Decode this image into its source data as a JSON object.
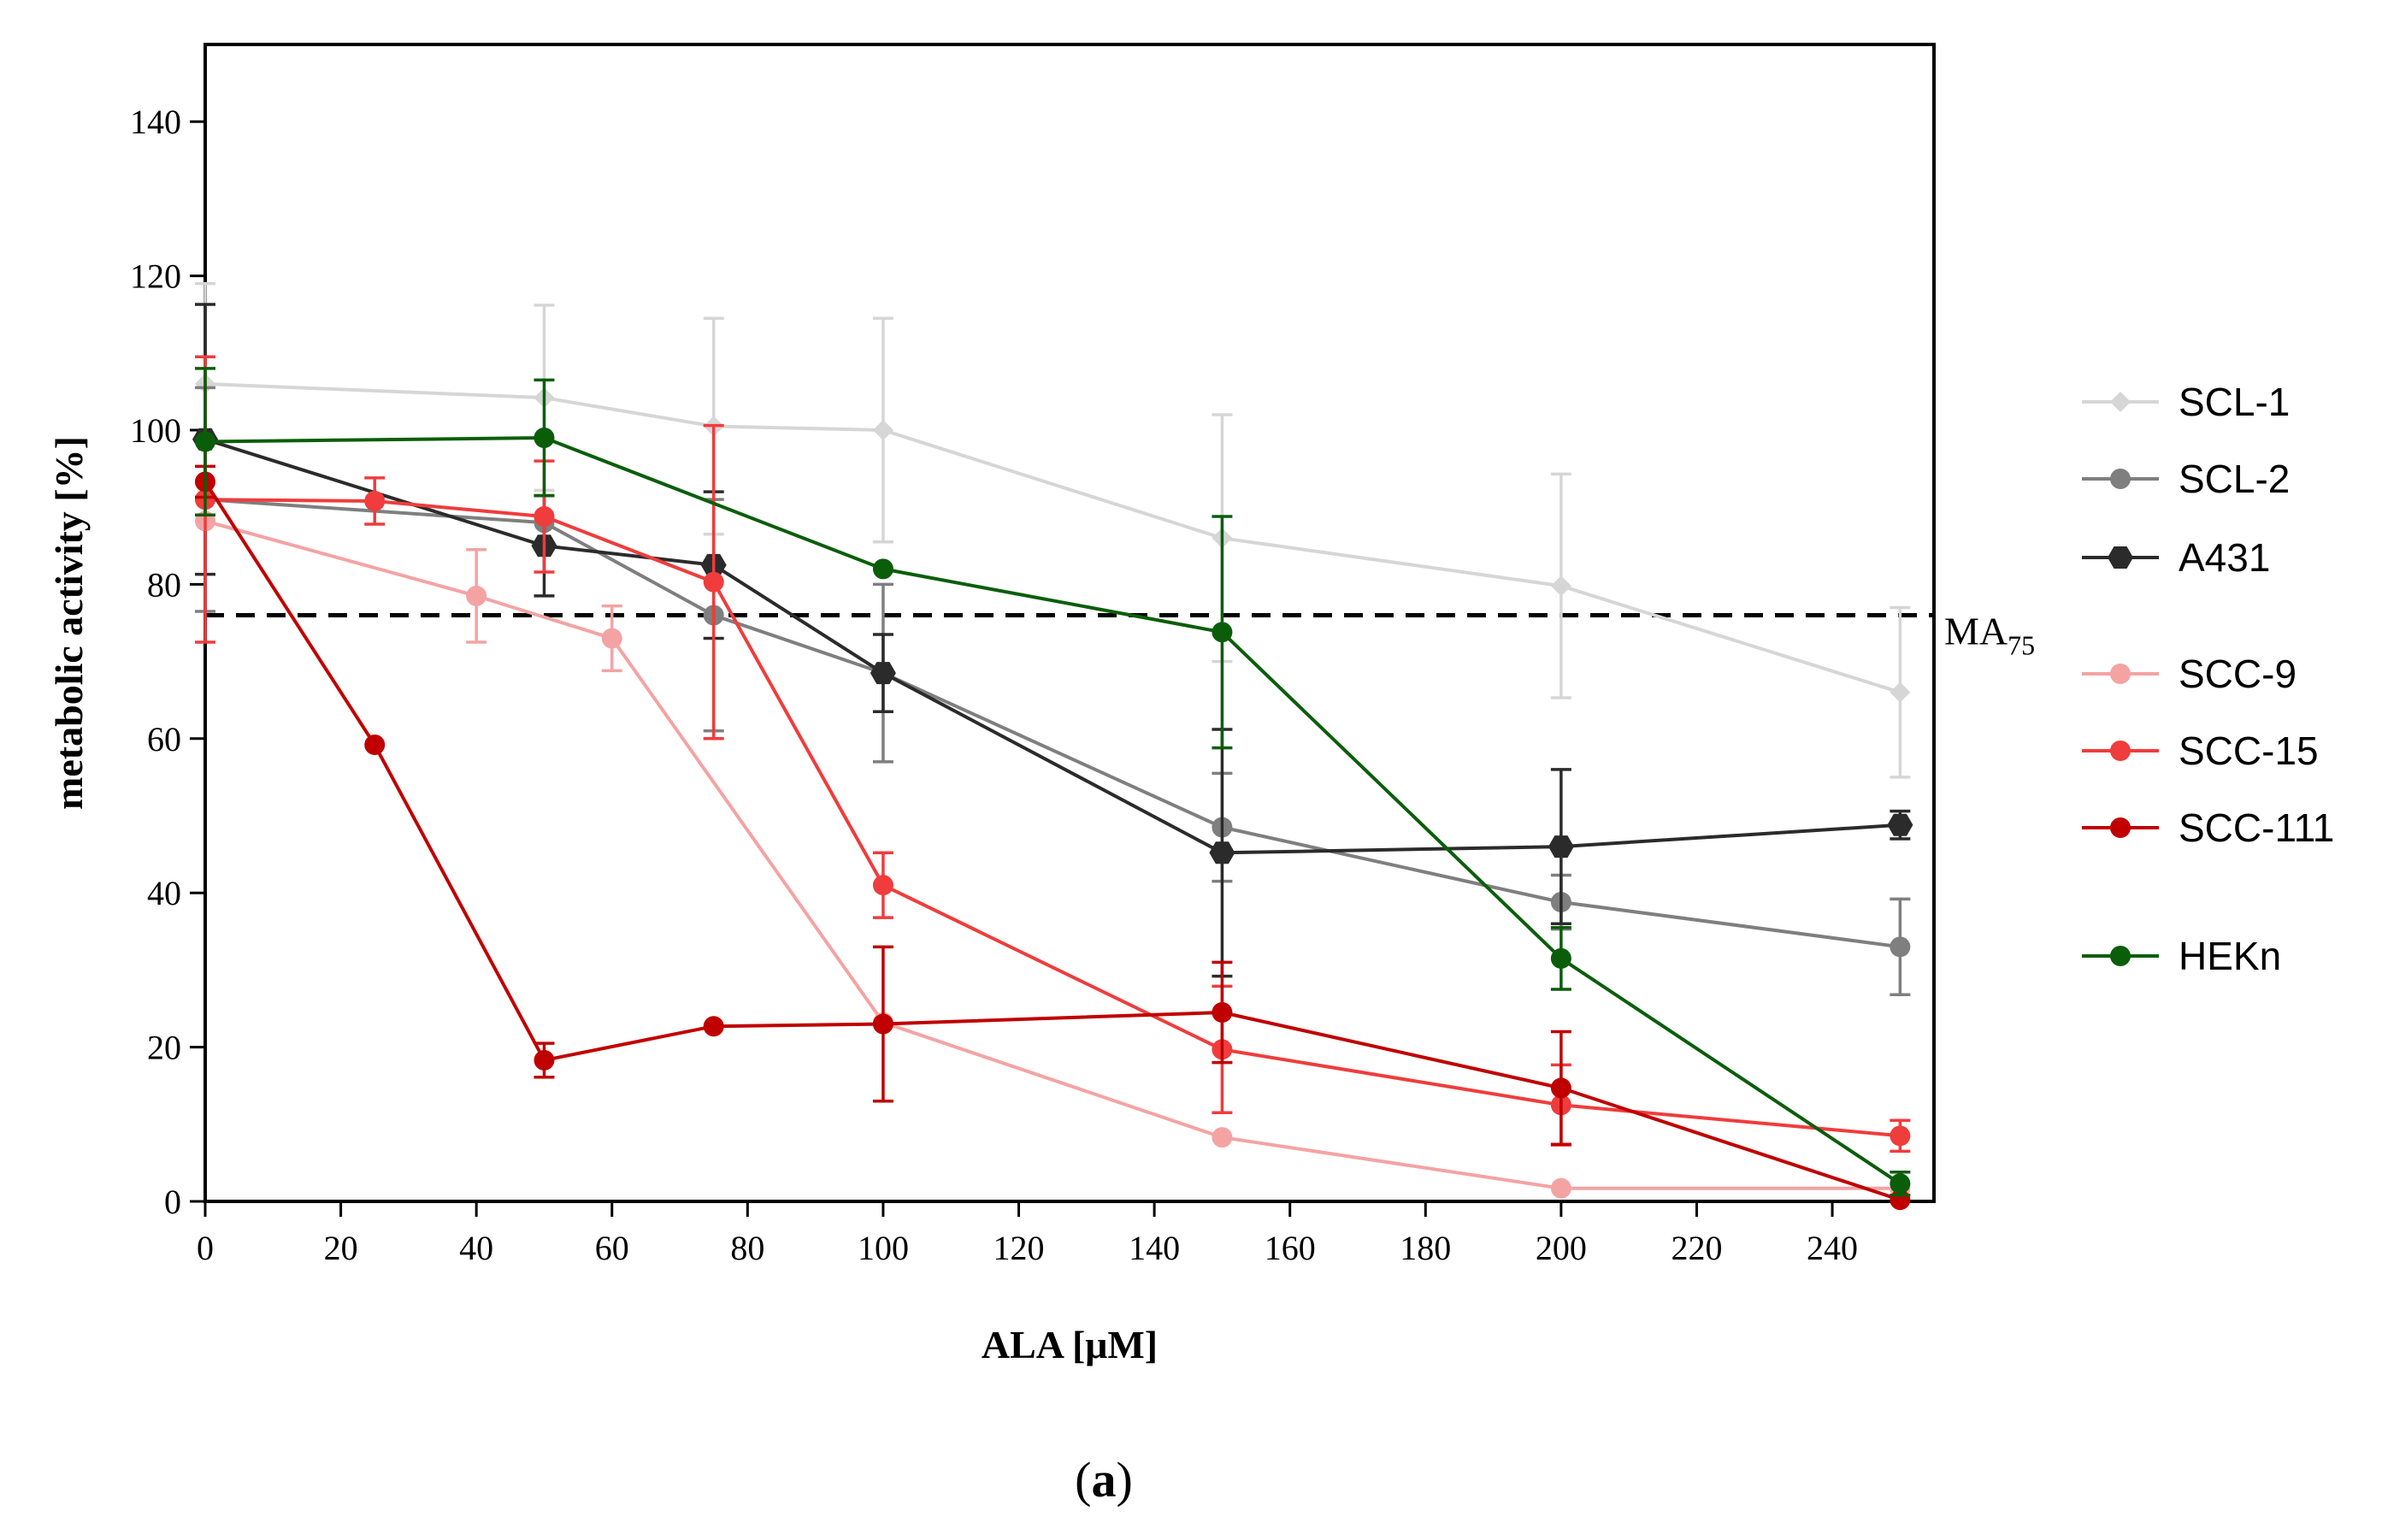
{
  "chart_data": {
    "type": "line",
    "xlabel": "ALA [μM]",
    "ylabel": "metabolic activity [%]",
    "xlim": [
      0,
      255
    ],
    "ylim": [
      0,
      150
    ],
    "xticks": [
      0,
      20,
      40,
      60,
      80,
      100,
      120,
      140,
      160,
      180,
      200,
      220,
      240
    ],
    "yticks": [
      0,
      20,
      40,
      60,
      80,
      100,
      120,
      140
    ],
    "caption": {
      "open": "(",
      "letter": "a",
      "close": ")"
    },
    "reference_line": {
      "y": 76,
      "label": "MA",
      "subscript": "75",
      "style": "dashed",
      "color": "#000000"
    },
    "legend_position": "right",
    "series": [
      {
        "name": "SCL-1",
        "color": "#d6d6d6",
        "marker": "diamond",
        "x": [
          0,
          50,
          75,
          100,
          150,
          200,
          250
        ],
        "y": [
          106,
          104.2,
          100.5,
          100,
          86,
          79.8,
          66
        ],
        "err": [
          13,
          12,
          14,
          14.5,
          16,
          14.5,
          11
        ]
      },
      {
        "name": "SCL-2",
        "color": "#7f7f7f",
        "marker": "circle",
        "x": [
          0,
          50,
          75,
          100,
          150,
          200,
          250
        ],
        "y": [
          91,
          88,
          76,
          68.5,
          48.5,
          38.8,
          33
        ],
        "err": [
          14.5,
          3.5,
          15,
          11.5,
          7,
          3.5,
          6.2
        ]
      },
      {
        "name": "A431",
        "color": "#2b2b2b",
        "marker": "hexagon",
        "x": [
          0,
          50,
          75,
          100,
          150,
          200,
          250
        ],
        "y": [
          98.8,
          85,
          82.5,
          68.5,
          45.2,
          46,
          48.8
        ],
        "err": [
          17.5,
          6.5,
          9.5,
          5,
          16,
          10,
          1.8
        ]
      },
      {
        "name": "SCC-9",
        "color": "#f4a3a3",
        "marker": "circle",
        "x": [
          0,
          40,
          60,
          100,
          150,
          200,
          250
        ],
        "y": [
          88.2,
          78.5,
          73,
          23.2,
          8.3,
          1.7,
          1.7
        ],
        "err": [
          0,
          6,
          4.2,
          0,
          0,
          0,
          0
        ]
      },
      {
        "name": "SCC-15",
        "color": "#f03c3c",
        "marker": "circle",
        "x": [
          0,
          25,
          50,
          75,
          100,
          150,
          200,
          250
        ],
        "y": [
          91,
          90.8,
          88.8,
          80.3,
          41,
          19.7,
          12.5,
          8.5
        ],
        "err": [
          18.5,
          3,
          7.2,
          20.3,
          4.2,
          8.2,
          5.2,
          2
        ]
      },
      {
        "name": "SCC-111",
        "color": "#c00000",
        "marker": "circle",
        "x": [
          0,
          25,
          50,
          75,
          100,
          150,
          200,
          250
        ],
        "y": [
          93.3,
          59.2,
          18.3,
          22.7,
          23,
          24.5,
          14.7,
          0.2
        ],
        "err": [
          2,
          0,
          2.2,
          0,
          10,
          6.5,
          7.3,
          0
        ]
      },
      {
        "name": "HEKn",
        "color": "#0a5e0a",
        "marker": "circle",
        "x": [
          0,
          50,
          100,
          150,
          200,
          250
        ],
        "y": [
          98.5,
          99,
          82,
          73.8,
          31.5,
          2.3
        ],
        "err": [
          9.5,
          7.5,
          0,
          15,
          4,
          1.5
        ]
      }
    ]
  }
}
